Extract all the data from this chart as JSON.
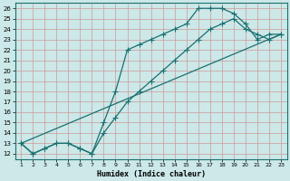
{
  "xlabel": "Humidex (Indice chaleur)",
  "bg_color": "#cce8e8",
  "grid_color": "#aaaacc",
  "line_color": "#1a7070",
  "xlim": [
    0.5,
    23.5
  ],
  "ylim": [
    11.5,
    26.5
  ],
  "xticks": [
    1,
    2,
    3,
    4,
    5,
    6,
    7,
    8,
    9,
    10,
    11,
    12,
    13,
    14,
    15,
    16,
    17,
    18,
    19,
    20,
    21,
    22,
    23
  ],
  "yticks": [
    12,
    13,
    14,
    15,
    16,
    17,
    18,
    19,
    20,
    21,
    22,
    23,
    24,
    25,
    26
  ],
  "line1_x": [
    1,
    2,
    3,
    4,
    5,
    6,
    7,
    8,
    9,
    10,
    11,
    12,
    13,
    14,
    15,
    16,
    17,
    18,
    19,
    20,
    21,
    22,
    23
  ],
  "line1_y": [
    13,
    12,
    12.5,
    13,
    13,
    12.5,
    12,
    15,
    18,
    22,
    22.5,
    23,
    23.5,
    24,
    24.5,
    26,
    26,
    26,
    25.5,
    24.5,
    23,
    23.5,
    23.5
  ],
  "line2_x": [
    1,
    2,
    3,
    4,
    5,
    6,
    7,
    8,
    9,
    10,
    11,
    12,
    13,
    14,
    15,
    16,
    17,
    18,
    19,
    20,
    21,
    22,
    23
  ],
  "line2_y": [
    13,
    12,
    12.5,
    13,
    13,
    12.5,
    12,
    14,
    15.5,
    17,
    18,
    19,
    20,
    21,
    22,
    23,
    24,
    24.5,
    25,
    24,
    23.5,
    23,
    23.5
  ],
  "line3_x": [
    1,
    23
  ],
  "line3_y": [
    13,
    23.5
  ],
  "xtick_fontsize": 4.5,
  "ytick_fontsize": 5.0,
  "xlabel_fontsize": 6.0
}
